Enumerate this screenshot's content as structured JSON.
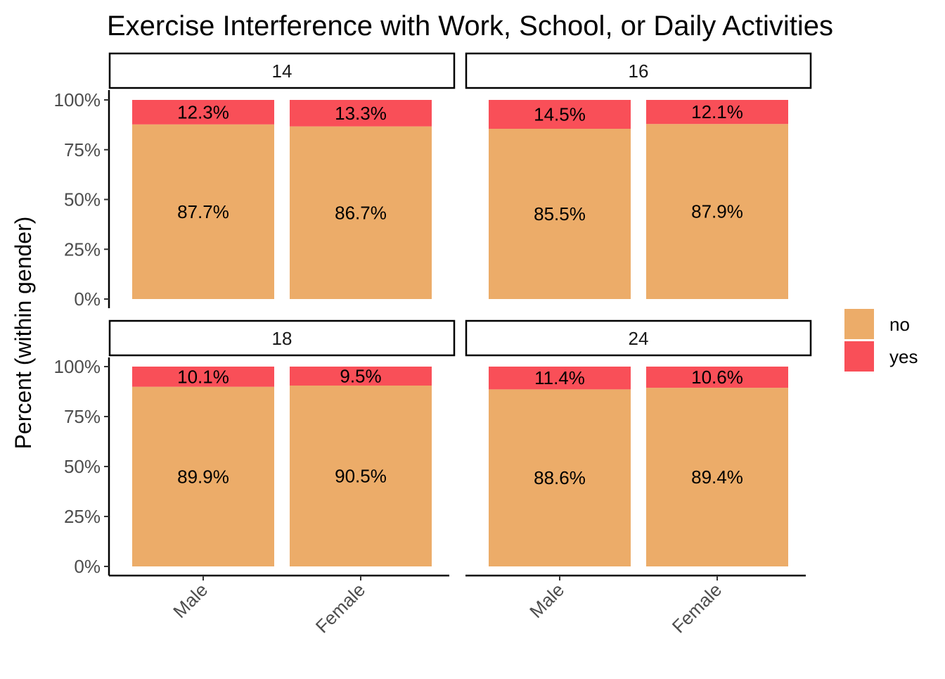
{
  "chart_data": {
    "type": "bar",
    "stacked": true,
    "title": "Exercise Interference with Work, School, or Daily Activities",
    "xlabel": "",
    "ylabel": "Percent (within gender)",
    "ylim": [
      0,
      100
    ],
    "yticks": [
      "0%",
      "25%",
      "50%",
      "75%",
      "100%"
    ],
    "categories": [
      "Male",
      "Female"
    ],
    "legend": {
      "placement": "right",
      "entries": [
        {
          "name": "no",
          "color": "#ECAC69"
        },
        {
          "name": "yes",
          "color": "#F94F58"
        }
      ]
    },
    "panels": [
      {
        "label": "14",
        "series": [
          {
            "name": "no",
            "values": [
              87.7,
              86.7
            ],
            "labels": [
              "87.7%",
              "86.7%"
            ]
          },
          {
            "name": "yes",
            "values": [
              12.3,
              13.3
            ],
            "labels": [
              "12.3%",
              "13.3%"
            ]
          }
        ]
      },
      {
        "label": "16",
        "series": [
          {
            "name": "no",
            "values": [
              85.5,
              87.9
            ],
            "labels": [
              "85.5%",
              "87.9%"
            ]
          },
          {
            "name": "yes",
            "values": [
              14.5,
              12.1
            ],
            "labels": [
              "14.5%",
              "12.1%"
            ]
          }
        ]
      },
      {
        "label": "18",
        "series": [
          {
            "name": "no",
            "values": [
              89.9,
              90.5
            ],
            "labels": [
              "89.9%",
              "90.5%"
            ]
          },
          {
            "name": "yes",
            "values": [
              10.1,
              9.5
            ],
            "labels": [
              "10.1%",
              "9.5%"
            ]
          }
        ]
      },
      {
        "label": "24",
        "series": [
          {
            "name": "no",
            "values": [
              88.6,
              89.4
            ],
            "labels": [
              "88.6%",
              "89.4%"
            ]
          },
          {
            "name": "yes",
            "values": [
              11.4,
              10.6
            ],
            "labels": [
              "11.4%",
              "10.6%"
            ]
          }
        ]
      }
    ]
  }
}
